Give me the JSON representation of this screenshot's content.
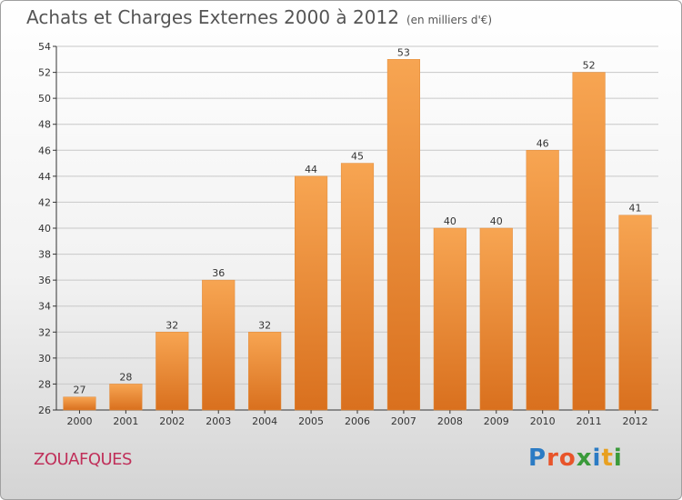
{
  "header": {
    "title": "Achats et Charges Externes 2000 à 2012",
    "subtitle": "(en milliers d'€)"
  },
  "footer": {
    "commune": "ZOUAFQUES",
    "logo_text": "Proxiti",
    "logo_colors": [
      "#2b7bc4",
      "#e8542a",
      "#e8542a",
      "#3a9a3a",
      "#2b7bc4",
      "#e8a020",
      "#3a9a3a"
    ]
  },
  "colors": {
    "bar_top": "#f7a552",
    "bar_bottom": "#d9701e",
    "grid": "#c8c8c8",
    "axis": "#333333"
  },
  "chart_data": {
    "type": "bar",
    "title": "Achats et Charges Externes 2000 à 2012",
    "subtitle": "(en milliers d'€)",
    "categories": [
      "2000",
      "2001",
      "2002",
      "2003",
      "2004",
      "2005",
      "2006",
      "2007",
      "2008",
      "2009",
      "2010",
      "2011",
      "2012"
    ],
    "values": [
      27,
      28,
      32,
      36,
      32,
      44,
      45,
      53,
      40,
      40,
      46,
      52,
      41
    ],
    "ylim": [
      26,
      54
    ],
    "yticks": [
      26,
      28,
      30,
      32,
      34,
      36,
      38,
      40,
      42,
      44,
      46,
      48,
      50,
      52,
      54
    ],
    "grid": true,
    "data_labels": true
  }
}
